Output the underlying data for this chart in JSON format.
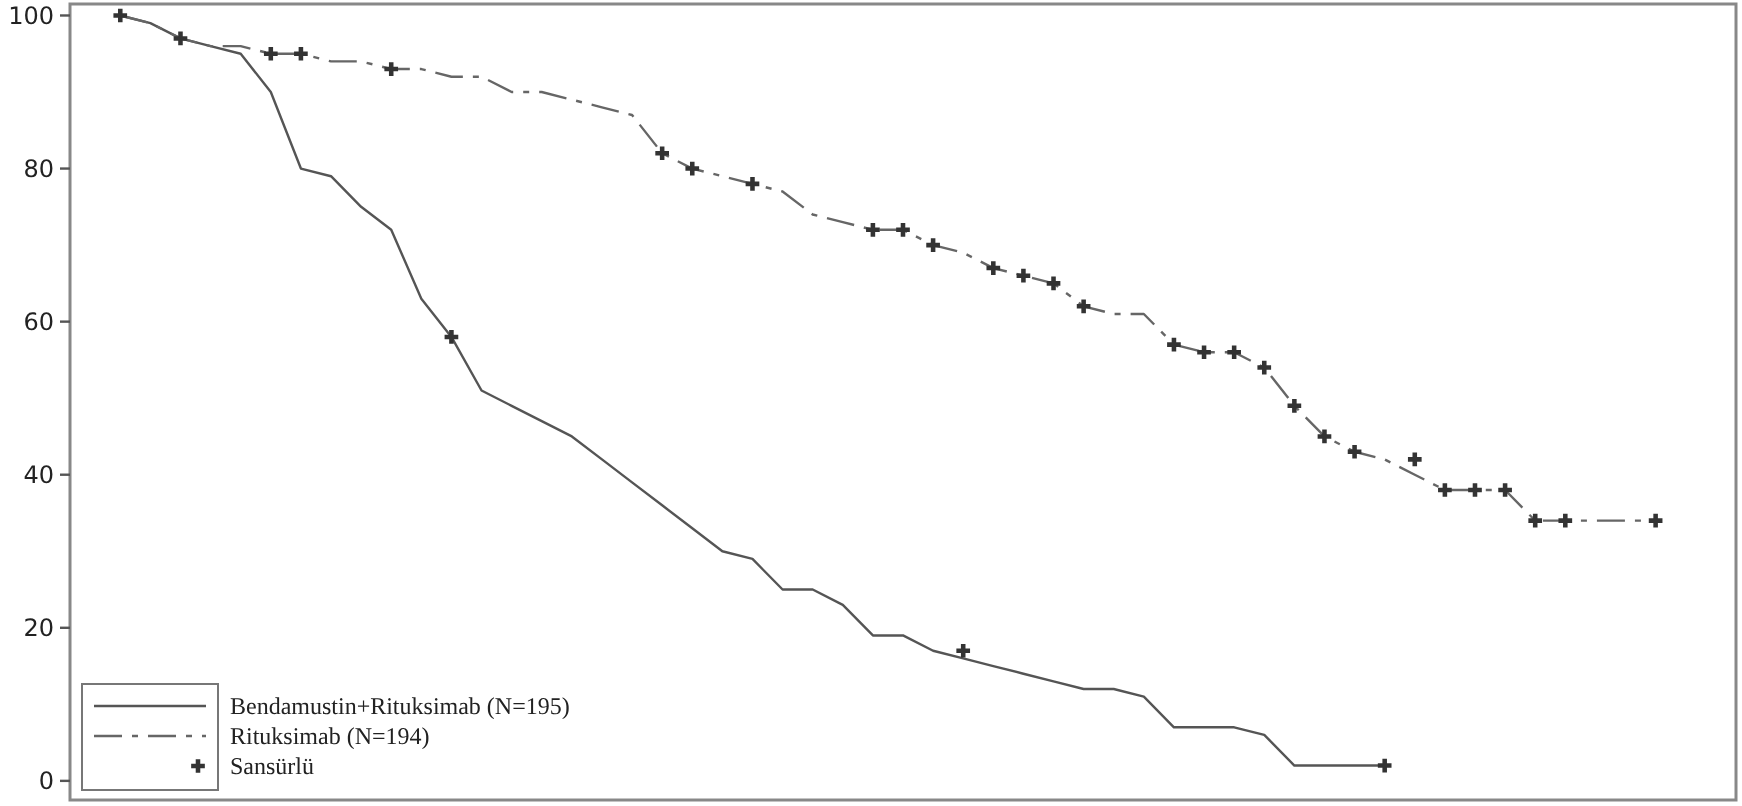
{
  "chart_data": {
    "type": "line",
    "categories": [
      null,
      null,
      null,
      null,
      null,
      null,
      null,
      null,
      null,
      null,
      null,
      null,
      null,
      null,
      null,
      null,
      null,
      null,
      null,
      null,
      null,
      null,
      null,
      null,
      null,
      null,
      null,
      null,
      null,
      null,
      null,
      null,
      null,
      null,
      null,
      null,
      null,
      null,
      null,
      null,
      null,
      null,
      null,
      null,
      null,
      null,
      null,
      null,
      null,
      null,
      null,
      null,
      null,
      null,
      null
    ],
    "series": [
      {
        "name": "Bendamustin+Rituksimab (N=195)",
        "color": "#555555",
        "line_style": "solid",
        "values": [
          null,
          100,
          99,
          97,
          96,
          95,
          90,
          80,
          79,
          75,
          72,
          63,
          58,
          51,
          49,
          47,
          45,
          42,
          39,
          36,
          33,
          30,
          29,
          25,
          25,
          23,
          19,
          19,
          17,
          16,
          15,
          14,
          13,
          12,
          12,
          11,
          7,
          7,
          7,
          6,
          2,
          2,
          2,
          2,
          null,
          null,
          null,
          null,
          null,
          null,
          null,
          null,
          null,
          null,
          null
        ]
      },
      {
        "name": "Rituksimab (N=194)",
        "color": "#666666",
        "line_style": "dashed",
        "values": [
          null,
          100,
          99,
          97,
          96,
          96,
          95,
          95,
          94,
          94,
          93,
          93,
          92,
          92,
          90,
          90,
          89,
          88,
          87,
          82,
          80,
          79,
          78,
          77,
          74,
          73,
          72,
          72,
          70,
          69,
          67,
          66,
          65,
          62,
          61,
          61,
          57,
          56,
          56,
          54,
          49,
          45,
          43,
          42,
          40,
          38,
          38,
          38,
          34,
          34,
          34,
          34,
          34,
          null,
          null
        ]
      },
      {
        "name": "Sansürlü",
        "type": "scatter",
        "marker": "cross",
        "color": "#333333",
        "values": [
          null,
          100,
          null,
          97,
          null,
          null,
          95,
          95,
          null,
          null,
          93,
          null,
          58,
          null,
          null,
          null,
          null,
          null,
          null,
          82,
          80,
          null,
          78,
          null,
          null,
          null,
          72,
          72,
          70,
          17,
          67,
          66,
          65,
          62,
          null,
          null,
          57,
          56,
          56,
          54,
          49,
          45,
          43,
          2,
          42,
          38,
          38,
          38,
          34,
          34,
          null,
          null,
          34,
          null,
          null
        ]
      }
    ],
    "ylim": [
      -2.5,
      101.5
    ],
    "yticks": [
      0,
      20,
      40,
      60,
      80,
      100
    ],
    "tick_labels": "y",
    "legend": "bottom left",
    "grid": false
  }
}
